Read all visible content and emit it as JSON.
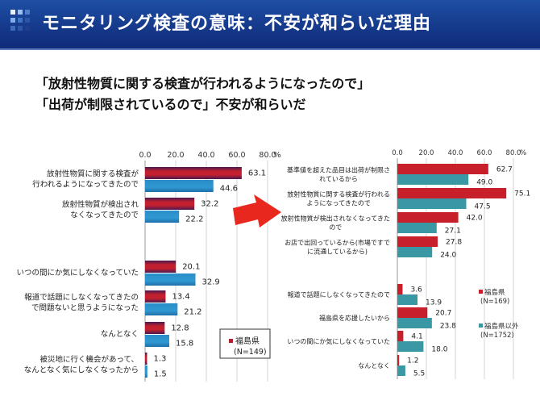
{
  "header": {
    "title": "モニタリング検査の意味：不安が和らいだ理由",
    "icon": "grid-squares-logo"
  },
  "subtitle": {
    "line1": "「放射性物質に関する検査が行われるようになったので」",
    "line2": "「出荷が制限されているので」不安が和らいだ"
  },
  "colors": {
    "header_bg": "#163a8c",
    "left_red": "#b01e2e",
    "left_blue": "#2a8ec8",
    "right_red": "#c8202a",
    "right_teal": "#3a97a4",
    "arrow": "#e8281e"
  },
  "chart_data": [
    {
      "type": "bar",
      "orientation": "horizontal",
      "title": "",
      "xlabel": "",
      "ylabel": "",
      "xlim": [
        0,
        80
      ],
      "ticks": [
        "0.0",
        "20.0",
        "40.0",
        "60.0",
        "80.0"
      ],
      "unit": "%",
      "grid": true,
      "legend_position": "bottom-right",
      "legend": [
        {
          "name": "福島県",
          "sub": "(N=149)",
          "color": "#b01e2e"
        }
      ],
      "categories": [
        [
          "放射性物質に関する検査が",
          "行われるようになってきたので"
        ],
        [
          "放射性物質が検出され",
          "なくなってきたので"
        ],
        [
          "いつの間にか気にしなくなっていた"
        ],
        [
          "報道で話題にしなくなってきたの",
          "で問題ないと思うようになった"
        ],
        [
          "なんとなく"
        ],
        [
          "被災地に行く機会があって、",
          "なんとなく気にしなくなったから"
        ]
      ],
      "series": [
        {
          "name": "福島県 (N=149)",
          "color": "#b01e2e",
          "values": [
            63.1,
            32.2,
            20.1,
            13.4,
            12.8,
            1.3
          ]
        },
        {
          "name": "series-2",
          "color": "#2a8ec8",
          "values": [
            44.6,
            22.2,
            32.9,
            21.2,
            15.8,
            1.5
          ]
        }
      ]
    },
    {
      "type": "bar",
      "orientation": "horizontal",
      "title": "",
      "xlabel": "",
      "ylabel": "",
      "xlim": [
        0,
        80
      ],
      "ticks": [
        "0.0",
        "20.0",
        "40.0",
        "60.0",
        "80.0"
      ],
      "unit": "%",
      "grid": true,
      "legend_position": "right",
      "legend": [
        {
          "name": "福島県",
          "sub": "(N=169)",
          "color": "#c8202a"
        },
        {
          "name": "福島県以外",
          "sub": "(N=1752)",
          "color": "#3a97a4"
        }
      ],
      "categories": [
        [
          "基準値を超えた品目は出荷が制限さ",
          "れているから"
        ],
        [
          "放射性物質に関する検査が行われる",
          "ようになってきたので"
        ],
        [
          "放射性物質が検出されなくなってきた",
          "ので"
        ],
        [
          "お店で出回っているから(市場ですで",
          "に流通しているから)"
        ],
        [
          "報道で話題にしなくなってきたので"
        ],
        [
          "福島県を応援したいから"
        ],
        [
          "いつの間にか気にしなくなっていた"
        ],
        [
          "なんとなく"
        ]
      ],
      "series": [
        {
          "name": "福島県 (N=169)",
          "color": "#c8202a",
          "values": [
            62.7,
            75.1,
            42.0,
            27.8,
            3.6,
            20.7,
            4.1,
            1.2
          ]
        },
        {
          "name": "福島県以外 (N=1752)",
          "color": "#3a97a4",
          "values": [
            49.0,
            47.5,
            27.1,
            24.0,
            13.9,
            23.8,
            18.0,
            5.5
          ]
        }
      ]
    }
  ]
}
